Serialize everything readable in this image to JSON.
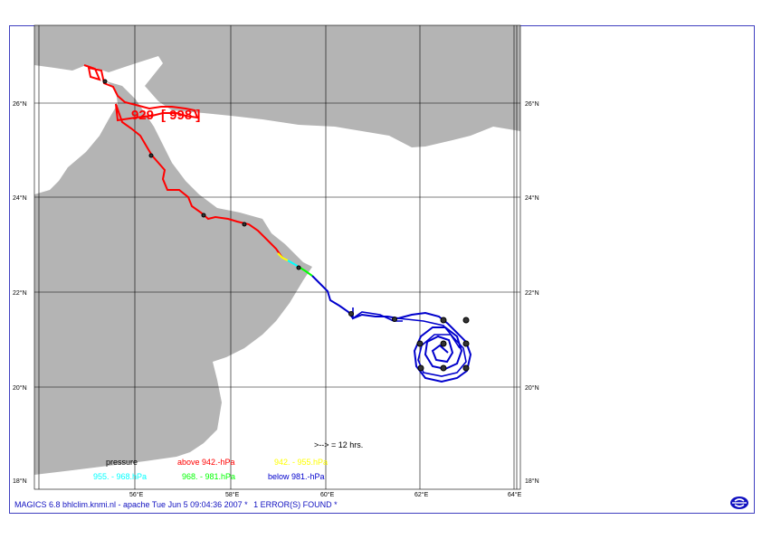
{
  "map": {
    "lat_labels": [
      "26°N",
      "24°N",
      "22°N",
      "20°N",
      "18°N"
    ],
    "lon_labels": [
      "56°E",
      "58°E",
      "60°E",
      "62°E",
      "64°E"
    ],
    "pressure_label_main": "929",
    "pressure_label_box": "[ 998 ]",
    "land_color": "#b4b4b4",
    "sea_color": "#ffffff",
    "grid_color": "#000000"
  },
  "legend": {
    "interval": ">--> = 12 hrs.",
    "title": "pressure",
    "items": [
      {
        "text": "above  942.-hPa",
        "color": "#ff0000"
      },
      {
        "text": "942.  -    955.hPa",
        "color": "#ffff00"
      },
      {
        "text": "955.  -    968.hPa",
        "color": "#00ffff"
      },
      {
        "text": "968.  -    981.hPa",
        "color": "#00ff00"
      },
      {
        "text": "below  981.-hPa",
        "color": "#0000cc"
      }
    ]
  },
  "footer": {
    "system": "MAGICS 6.8 bhlclim.knmi.nl - apache Tue Jun  5 09:04:36 2007 *",
    "errors": "1 ERROR(S) FOUND *"
  }
}
